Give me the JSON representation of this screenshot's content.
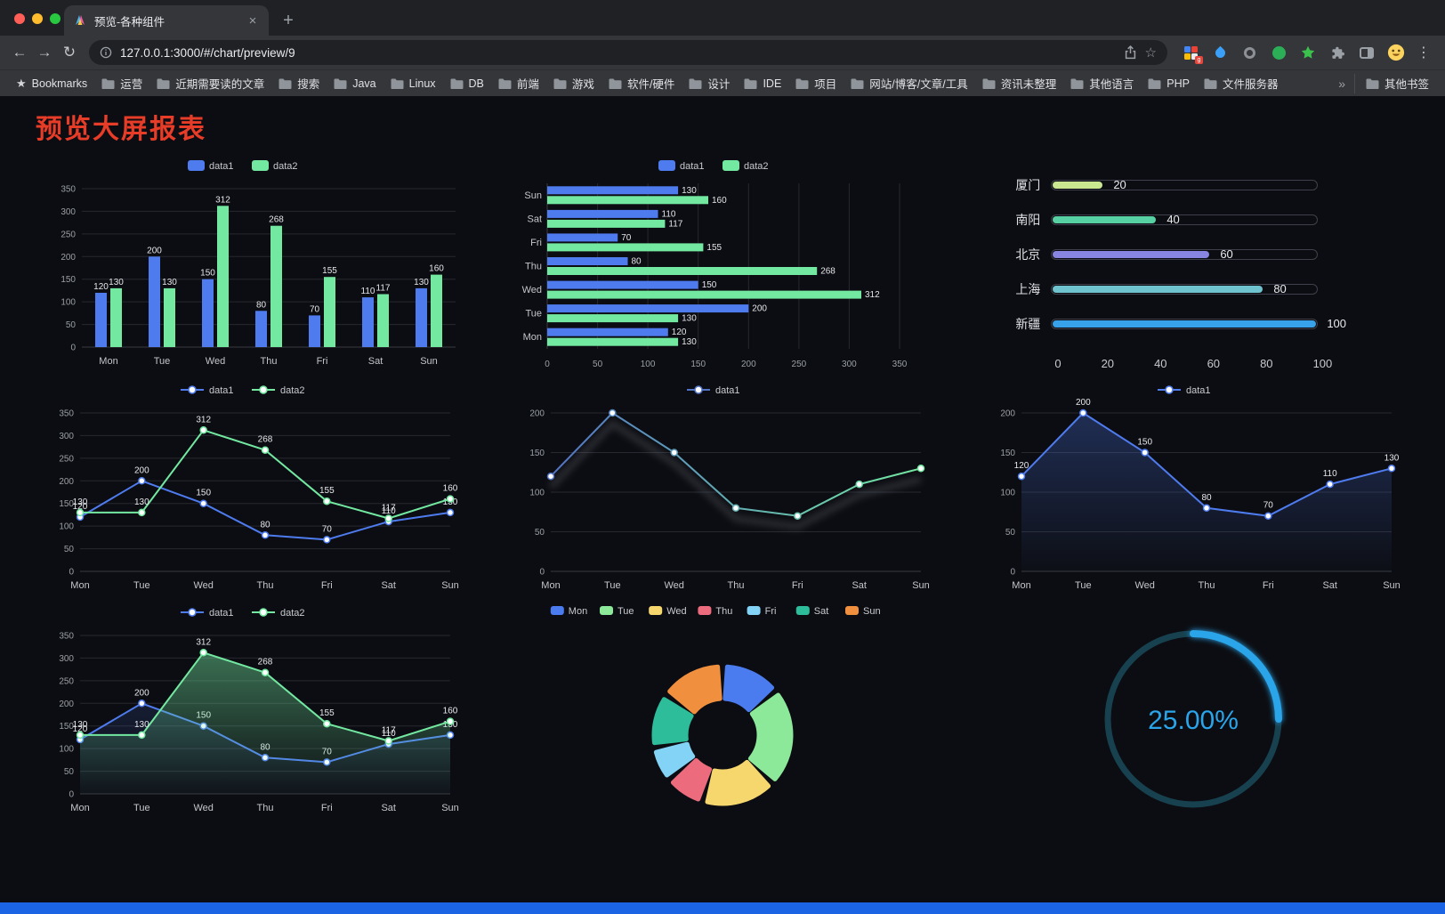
{
  "browser": {
    "tab_title": "预览-各种组件",
    "url": "127.0.0.1:3000/#/chart/preview/9",
    "icons": {
      "back": "←",
      "forward": "→",
      "reload": "↻",
      "close": "×",
      "new_tab": "+",
      "menu": "⋮",
      "bookmark_star": "☆",
      "bookmarks_manager_star": "★",
      "overflow_chevron": "»"
    },
    "bookmarks": {
      "manager_label": "Bookmarks",
      "folders": [
        "运营",
        "近期需要读的文章",
        "搜索",
        "Java",
        "Linux",
        "DB",
        "前端",
        "游戏",
        "软件/硬件",
        "设计",
        "IDE",
        "项目",
        "网站/博客/文章/工具",
        "资讯未整理",
        "其他语言",
        "PHP",
        "文件服务器"
      ],
      "other_bookmarks_label": "其他书签"
    }
  },
  "page": {
    "title": "预览大屏报表",
    "title_color": "#e73c27",
    "background": "#0c0d12",
    "footer_color": "#1b64e4"
  },
  "chart_data": [
    {
      "type": "bar",
      "legend": [
        "data1",
        "data2"
      ],
      "categories": [
        "Mon",
        "Tue",
        "Wed",
        "Thu",
        "Fri",
        "Sat",
        "Sun"
      ],
      "series": [
        {
          "name": "data1",
          "color": "#4e7bee",
          "values": [
            120,
            200,
            150,
            80,
            70,
            110,
            130
          ]
        },
        {
          "name": "data2",
          "color": "#73e8a1",
          "values": [
            130,
            130,
            312,
            268,
            155,
            117,
            160
          ]
        }
      ],
      "ylim": [
        0,
        350
      ],
      "ytick_step": 50,
      "show_labels": true
    },
    {
      "type": "hbar",
      "legend": [
        "data1",
        "data2"
      ],
      "categories": [
        "Mon",
        "Tue",
        "Wed",
        "Thu",
        "Fri",
        "Sat",
        "Sun"
      ],
      "series": [
        {
          "name": "data1",
          "color": "#4e7bee",
          "values": [
            120,
            200,
            150,
            80,
            70,
            110,
            130
          ]
        },
        {
          "name": "data2",
          "color": "#73e8a1",
          "values": [
            130,
            130,
            312,
            268,
            155,
            117,
            160
          ]
        }
      ],
      "xlim": [
        0,
        350
      ],
      "xtick_step": 50,
      "show_labels": true,
      "display_order": "last-category-on-top"
    },
    {
      "type": "progress",
      "items": [
        {
          "label": "厦门",
          "value": 20,
          "color": "#c9e88f"
        },
        {
          "label": "南阳",
          "value": 40,
          "color": "#57d0a4"
        },
        {
          "label": "北京",
          "value": 60,
          "color": "#8884e2"
        },
        {
          "label": "上海",
          "value": 80,
          "color": "#6fc3cf"
        },
        {
          "label": "新疆",
          "value": 100,
          "color": "#37a2e9"
        }
      ],
      "ticks": [
        0,
        20,
        40,
        60,
        80,
        100
      ],
      "max": 100
    },
    {
      "type": "line",
      "legend": [
        "data1",
        "data2"
      ],
      "categories": [
        "Mon",
        "Tue",
        "Wed",
        "Thu",
        "Fri",
        "Sat",
        "Sun"
      ],
      "series": [
        {
          "name": "data1",
          "color": "#4e7bee",
          "values": [
            120,
            200,
            150,
            80,
            70,
            110,
            130
          ],
          "labels": true
        },
        {
          "name": "data2",
          "color": "#73e8a1",
          "values": [
            130,
            130,
            312,
            268,
            155,
            117,
            160
          ],
          "labels": true
        }
      ],
      "ylim": [
        0,
        350
      ],
      "ytick_step": 50
    },
    {
      "type": "line",
      "legend": [
        "data1"
      ],
      "categories": [
        "Mon",
        "Tue",
        "Wed",
        "Thu",
        "Fri",
        "Sat",
        "Sun"
      ],
      "series": [
        {
          "name": "data1",
          "gradient": [
            "#5273c4",
            "#73e8a1"
          ],
          "values": [
            120,
            200,
            150,
            80,
            70,
            110,
            130
          ],
          "shadow": true
        }
      ],
      "ylim": [
        0,
        200
      ],
      "ytick_step": 50
    },
    {
      "type": "line",
      "legend": [
        "data1"
      ],
      "categories": [
        "Mon",
        "Tue",
        "Wed",
        "Thu",
        "Fri",
        "Sat",
        "Sun"
      ],
      "series": [
        {
          "name": "data1",
          "color": "#4e7bee",
          "values": [
            120,
            200,
            150,
            80,
            70,
            110,
            130
          ],
          "labels": true,
          "area": true,
          "area_opacity": 0.3
        }
      ],
      "ylim": [
        0,
        200
      ],
      "ytick_step": 50
    },
    {
      "type": "line",
      "legend": [
        "data1",
        "data2"
      ],
      "categories": [
        "Mon",
        "Tue",
        "Wed",
        "Thu",
        "Fri",
        "Sat",
        "Sun"
      ],
      "series": [
        {
          "name": "data1",
          "color": "#4e7bee",
          "values": [
            120,
            200,
            150,
            80,
            70,
            110,
            130
          ],
          "labels": true,
          "area": true,
          "area_opacity": 0.15
        },
        {
          "name": "data2",
          "color": "#73e8a1",
          "values": [
            130,
            130,
            312,
            268,
            155,
            117,
            160
          ],
          "labels": true,
          "area": true,
          "area_opacity": 0.45
        }
      ],
      "ylim": [
        0,
        350
      ],
      "ytick_step": 50
    },
    {
      "type": "pie",
      "legend": [
        "Mon",
        "Tue",
        "Wed",
        "Thu",
        "Fri",
        "Sat",
        "Sun"
      ],
      "values": [
        120,
        200,
        150,
        80,
        70,
        110,
        130
      ],
      "colors": [
        "#4a7cf0",
        "#8ce99a",
        "#f5d76e",
        "#ec6b7d",
        "#82d3f5",
        "#2ebd9b",
        "#f0903f"
      ],
      "inner_radius_ratio": 0.53
    },
    {
      "type": "gauge",
      "value": 25,
      "label": "25.00%",
      "color": "#2aa5ea",
      "track_color": "#17414f"
    }
  ]
}
